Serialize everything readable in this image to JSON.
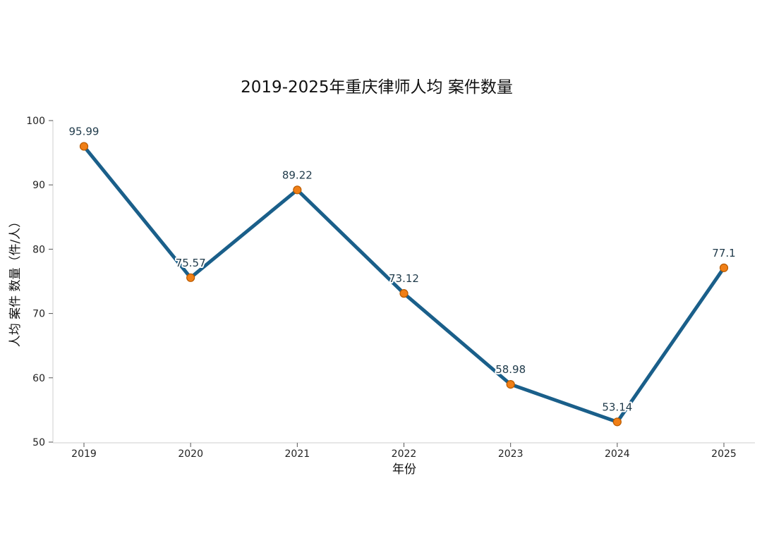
{
  "chart_data": {
    "type": "line",
    "title": "2019-2025年重庆律师人均 案件数量",
    "xlabel": "年份",
    "ylabel": "人均 案件 数量（件/人）",
    "categories": [
      "2019",
      "2020",
      "2021",
      "2022",
      "2023",
      "2024",
      "2025"
    ],
    "series": [
      {
        "values": [
          95.99,
          75.57,
          89.22,
          73.12,
          58.98,
          53.14,
          77.1
        ],
        "data_labels": [
          "95.99",
          "75.57",
          "89.22",
          "73.12",
          "58.98",
          "53.14",
          "77.1"
        ]
      }
    ],
    "ylim": [
      50,
      100
    ],
    "yticks": [
      "50",
      "60",
      "70",
      "80",
      "90",
      "100"
    ],
    "grid": false,
    "line_color": "#1a5f8a",
    "marker_color": "#f07f16"
  }
}
